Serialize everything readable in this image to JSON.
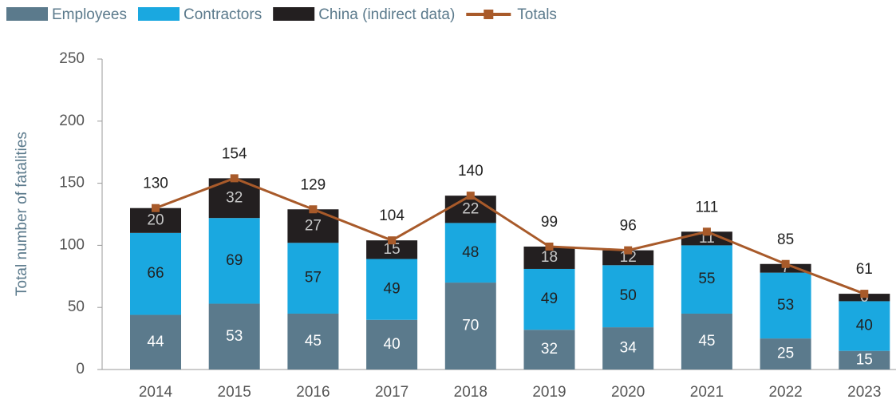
{
  "chart_data": {
    "type": "bar",
    "stacked": true,
    "y_label": "Total number of fatalities",
    "categories": [
      "2014",
      "2015",
      "2016",
      "2017",
      "2018",
      "2019",
      "2020",
      "2021",
      "2022",
      "2023"
    ],
    "series": [
      {
        "name": "Employees",
        "color": "#5b7a8c",
        "label_color": "#ffffff",
        "values": [
          44,
          53,
          45,
          40,
          70,
          32,
          34,
          45,
          25,
          15
        ]
      },
      {
        "name": "Contractors",
        "color": "#1aa8e0",
        "label_color": "#222222",
        "values": [
          66,
          69,
          57,
          49,
          48,
          49,
          50,
          55,
          53,
          40
        ]
      },
      {
        "name": "China (indirect data)",
        "color": "#231f20",
        "label_color": "#c8c8c8",
        "values": [
          20,
          32,
          27,
          15,
          22,
          18,
          12,
          11,
          7,
          6
        ]
      },
      {
        "name": "Totals",
        "type": "line",
        "color": "#a85a2a",
        "values": [
          130,
          154,
          129,
          104,
          140,
          99,
          96,
          111,
          85,
          61
        ]
      }
    ],
    "ylim": [
      0,
      250
    ],
    "yticks": [
      0,
      50,
      100,
      150,
      200,
      250
    ],
    "grid": false
  }
}
